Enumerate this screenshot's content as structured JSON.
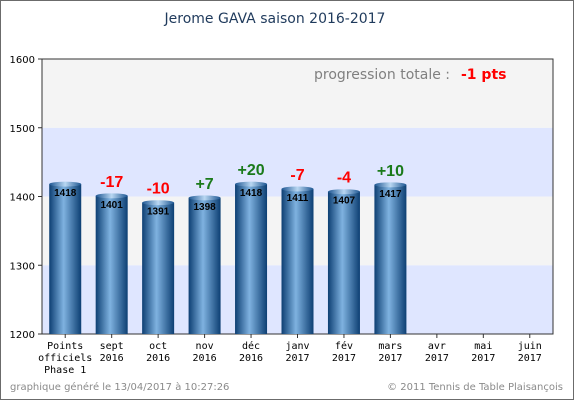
{
  "chart_data": {
    "type": "bar",
    "title": "Jerome GAVA    saison 2016-2017",
    "ylim": [
      1200,
      1600
    ],
    "yticks": [
      1200,
      1300,
      1400,
      1500,
      1600
    ],
    "categories": [
      [
        "Points",
        "officiels",
        "Phase 1"
      ],
      [
        "sept",
        "2016"
      ],
      [
        "oct",
        "2016"
      ],
      [
        "nov",
        "2016"
      ],
      [
        "déc",
        "2016"
      ],
      [
        "janv",
        "2017"
      ],
      [
        "fév",
        "2017"
      ],
      [
        "mars",
        "2017"
      ],
      [
        "avr",
        "2017"
      ],
      [
        "mai",
        "2017"
      ],
      [
        "juin",
        "2017"
      ]
    ],
    "values": [
      1418,
      1401,
      1391,
      1398,
      1418,
      1411,
      1407,
      1417,
      null,
      null,
      null
    ],
    "deltas": [
      null,
      "-17",
      "-10",
      "+7",
      "+20",
      "-7",
      "-4",
      "+10",
      null,
      null,
      null
    ],
    "progression_label": "progression totale :",
    "progression_value": "-1 pts",
    "grid": true,
    "band_colors": [
      "#ffffff",
      "#dfe6ff",
      "#f4f4f4",
      "#dfe6ff",
      "#f4f4f4"
    ],
    "colors": {
      "title": "#1f3a5c",
      "bar_dark": "#0d3f73",
      "bar_light": "#7fb2e0",
      "positive": "#1a7a1a",
      "negative": "#ff0000",
      "progression_label": "#808080",
      "progression_value": "#ff0000"
    }
  },
  "footer": {
    "left": "graphique généré le 13/04/2017 à 10:27:26",
    "right": "© 2011 Tennis de Table Plaisançois"
  }
}
